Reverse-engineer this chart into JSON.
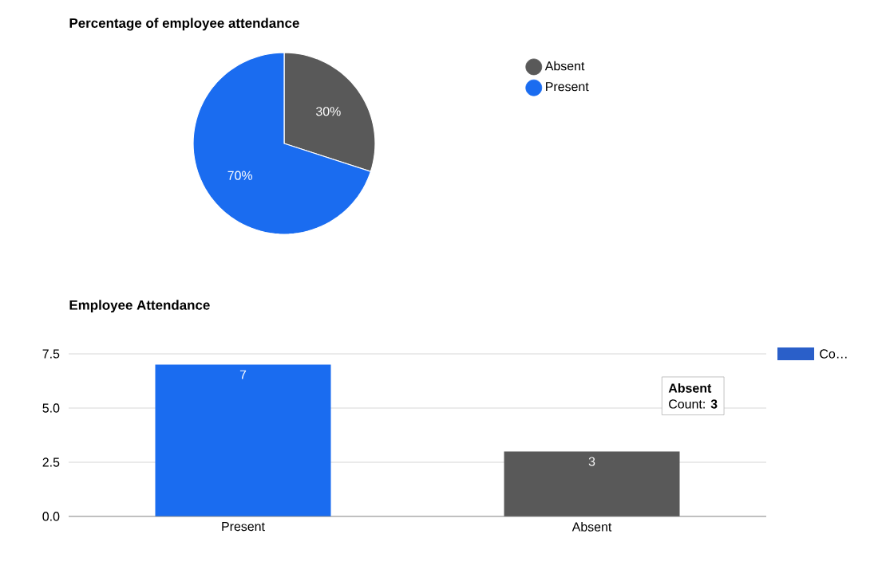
{
  "chart_data": [
    {
      "type": "pie",
      "title": "Percentage of employee attendance",
      "categories": [
        "Absent",
        "Present"
      ],
      "values": [
        30,
        70
      ],
      "colors": [
        "#595959",
        "#1a6cf0"
      ],
      "value_labels": [
        "30%",
        "70%"
      ],
      "legend": "right"
    },
    {
      "type": "bar",
      "title": "Employee Attendance",
      "categories": [
        "Present",
        "Absent"
      ],
      "series": [
        {
          "name": "Co…",
          "color": "#2a5fc9",
          "colors": [
            "#1a6cf0",
            "#595959"
          ],
          "values": [
            7,
            3
          ]
        }
      ],
      "ylim": [
        0,
        7.5
      ],
      "yticks": [
        {
          "value": 0,
          "label": "0.0"
        },
        {
          "value": 2.5,
          "label": "2.5"
        },
        {
          "value": 5,
          "label": "5.0"
        },
        {
          "value": 7.5,
          "label": "7.5"
        }
      ],
      "grid": "y",
      "data_labels": true,
      "legend": "right",
      "annotations": [
        "**Absent**",
        "Count: **3**"
      ]
    }
  ]
}
